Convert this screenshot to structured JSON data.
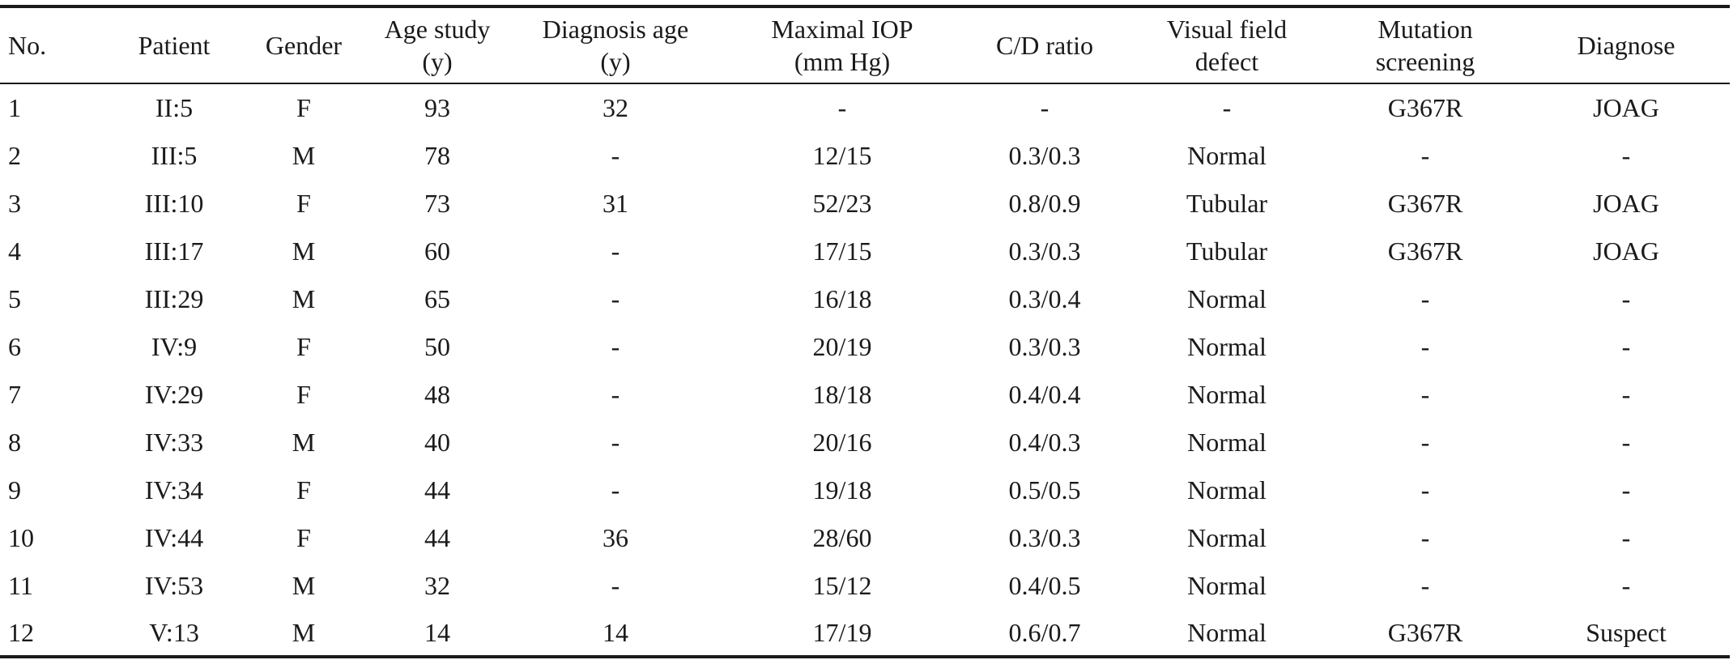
{
  "table": {
    "headers": [
      [
        "No."
      ],
      [
        "Patient"
      ],
      [
        "Gender"
      ],
      [
        "Age study",
        "(y)"
      ],
      [
        "Diagnosis age",
        "(y)"
      ],
      [
        "Maximal IOP",
        "(mm Hg)"
      ],
      [
        "C/D ratio"
      ],
      [
        "Visual field",
        "defect"
      ],
      [
        "Mutation",
        "screening"
      ],
      [
        "Diagnose"
      ]
    ],
    "rows": [
      [
        "1",
        "II:5",
        "F",
        "93",
        "32",
        "-",
        "-",
        "-",
        "G367R",
        "JOAG"
      ],
      [
        "2",
        "III:5",
        "M",
        "78",
        "-",
        "12/15",
        "0.3/0.3",
        "Normal",
        "-",
        "-"
      ],
      [
        "3",
        "III:10",
        "F",
        "73",
        "31",
        "52/23",
        "0.8/0.9",
        "Tubular",
        "G367R",
        "JOAG"
      ],
      [
        "4",
        "III:17",
        "M",
        "60",
        "-",
        "17/15",
        "0.3/0.3",
        "Tubular",
        "G367R",
        "JOAG"
      ],
      [
        "5",
        "III:29",
        "M",
        "65",
        "-",
        "16/18",
        "0.3/0.4",
        "Normal",
        "-",
        "-"
      ],
      [
        "6",
        "IV:9",
        "F",
        "50",
        "-",
        "20/19",
        "0.3/0.3",
        "Normal",
        "-",
        "-"
      ],
      [
        "7",
        "IV:29",
        "F",
        "48",
        "-",
        "18/18",
        "0.4/0.4",
        "Normal",
        "-",
        "-"
      ],
      [
        "8",
        "IV:33",
        "M",
        "40",
        "-",
        "20/16",
        "0.4/0.3",
        "Normal",
        "-",
        "-"
      ],
      [
        "9",
        "IV:34",
        "F",
        "44",
        "-",
        "19/18",
        "0.5/0.5",
        "Normal",
        "-",
        "-"
      ],
      [
        "10",
        "IV:44",
        "F",
        "44",
        "36",
        "28/60",
        "0.3/0.3",
        "Normal",
        "-",
        "-"
      ],
      [
        "11",
        "IV:53",
        "M",
        "32",
        "-",
        "15/12",
        "0.4/0.5",
        "Normal",
        "-",
        "-"
      ],
      [
        "12",
        "V:13",
        "M",
        "14",
        "14",
        "17/19",
        "0.6/0.7",
        "Normal",
        "G367R",
        "Suspect"
      ]
    ]
  }
}
